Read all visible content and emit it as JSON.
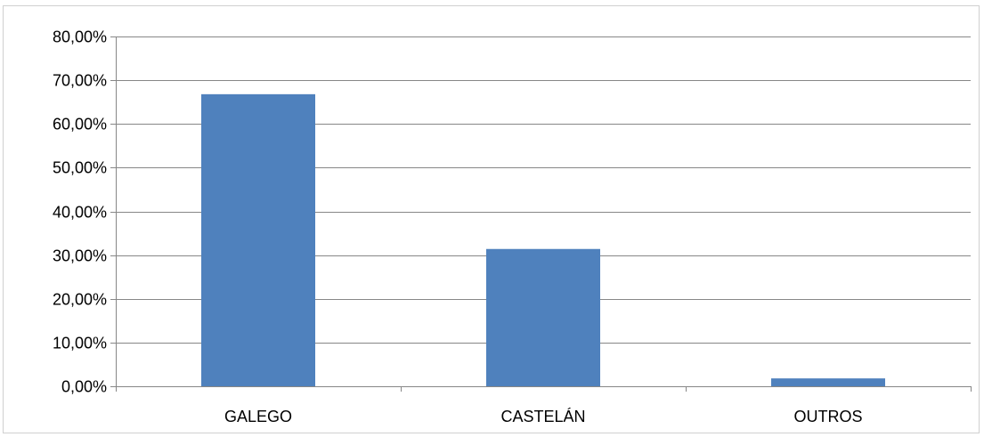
{
  "chart_data": {
    "type": "bar",
    "categories": [
      "GALEGO",
      "CASTELÁN",
      "OUTROS"
    ],
    "values": [
      66.8,
      31.4,
      1.8
    ],
    "title": "",
    "xlabel": "",
    "ylabel": "",
    "ylim": [
      0,
      80
    ],
    "yticks": [
      0,
      10,
      20,
      30,
      40,
      50,
      60,
      70,
      80
    ],
    "ytick_labels": [
      "0,00%",
      "10,00%",
      "20,00%",
      "30,00%",
      "40,00%",
      "50,00%",
      "60,00%",
      "70,00%",
      "80,00%"
    ],
    "grid": true,
    "legend": "none",
    "bar_color": "#4f81bd"
  }
}
